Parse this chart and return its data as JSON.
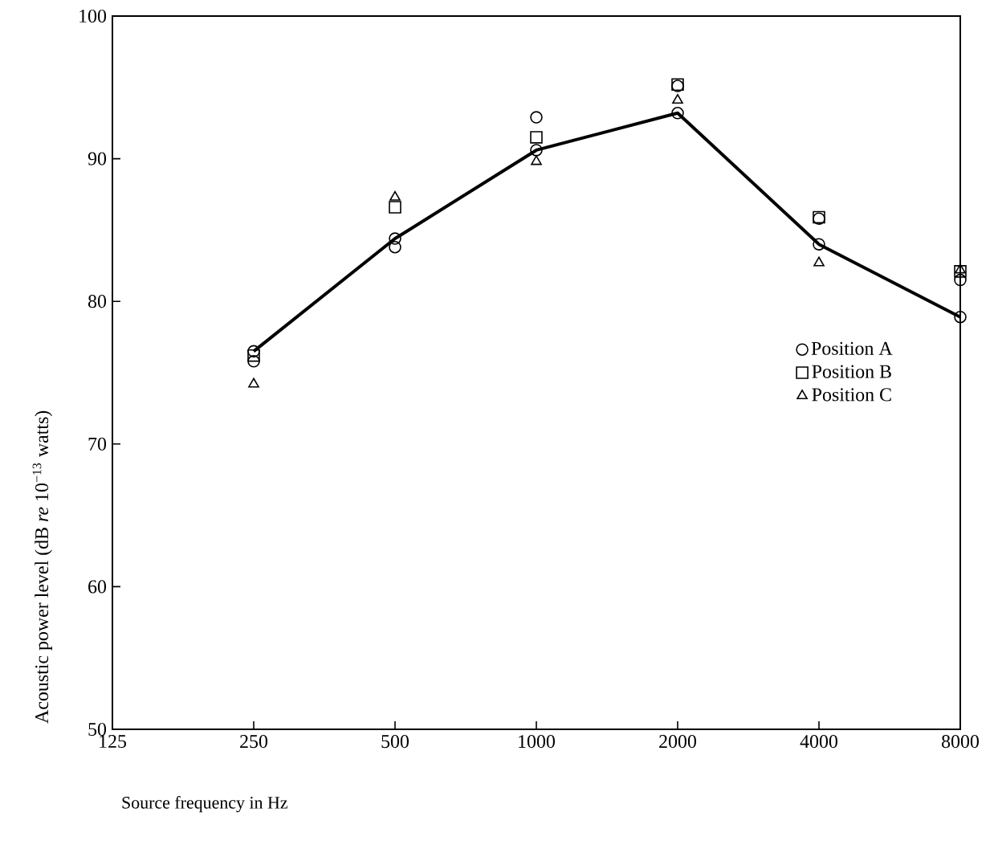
{
  "chart_data": {
    "type": "scatter",
    "xlabel": "Source frequency in Hz",
    "ylabel": "Acoustic power level (dB *re* 10$^{−13}$ watts)",
    "categories": [
      "125",
      "250",
      "500",
      "1000",
      "2000",
      "4000",
      "8000"
    ],
    "ylim": [
      50,
      100
    ],
    "yticks": [
      50,
      60,
      70,
      80,
      90,
      100
    ],
    "grid": false,
    "legend": "right",
    "series": [
      {
        "type": "scatter",
        "name": "Position A",
        "color": "#000000",
        "marker": "circle",
        "values": [
          null,
          75.8,
          83.8,
          92.9,
          95.1,
          85.8,
          81.5
        ]
      },
      {
        "type": "scatter",
        "name": "Position B",
        "color": "#000000",
        "marker": "square",
        "values": [
          null,
          76.2,
          86.6,
          91.5,
          95.2,
          85.9,
          82.1
        ]
      },
      {
        "type": "scatter",
        "name": "Position C",
        "color": "#000000",
        "marker": "triangle",
        "values": [
          null,
          74.2,
          87.3,
          89.8,
          94.1,
          82.7,
          82.2
        ]
      },
      {
        "type": "line",
        "color": "#000000",
        "marker": "circle",
        "line_style": "solid",
        "values": [
          null,
          76.5,
          84.4,
          90.6,
          93.2,
          84.0,
          78.9
        ]
      }
    ]
  }
}
